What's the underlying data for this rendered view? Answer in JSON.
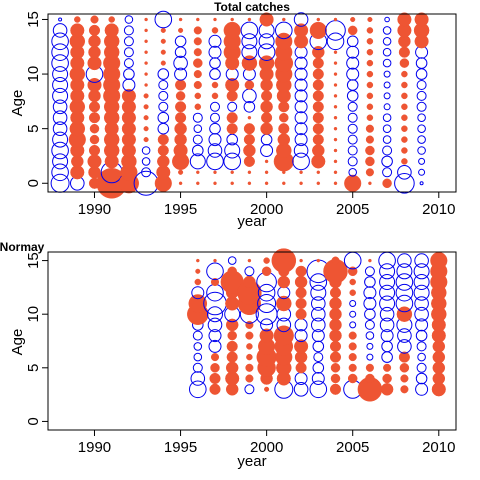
{
  "chart_data": [
    {
      "type": "bubble",
      "title": "Total catches",
      "xlabel": "year",
      "ylabel": "Age",
      "xlim": [
        1987.3,
        2011.0
      ],
      "ylim": [
        -0.8,
        15.5
      ],
      "xticks": [
        "1990",
        "1995",
        "2000",
        "2005",
        "2010"
      ],
      "yticks": [
        "0",
        "5",
        "10",
        "15"
      ],
      "legend": "none",
      "grid": false,
      "positive_color": "#ee5533",
      "negative_color": "#0000ee",
      "note": "filled red = positive residual, open blue = negative residual; value = signed relative size",
      "x": [
        1988,
        1989,
        1990,
        1991,
        1992,
        1993,
        1994,
        1995,
        1996,
        1997,
        1998,
        1999,
        2000,
        2001,
        2002,
        2003,
        2004,
        2005,
        2006,
        2007,
        2008,
        2009
      ],
      "ages": [
        0,
        1,
        2,
        3,
        4,
        5,
        6,
        7,
        8,
        9,
        10,
        11,
        12,
        13,
        14,
        15
      ],
      "series": [
        {
          "x": 1988,
          "values": [
            -0.6,
            -0.55,
            -0.5,
            -0.55,
            -0.5,
            -0.45,
            -0.45,
            -0.45,
            -0.5,
            -0.5,
            -0.5,
            -0.55,
            -0.55,
            -0.55,
            -0.45,
            -0.1
          ]
        },
        {
          "x": 1989,
          "values": [
            -0.45,
            0.45,
            0.4,
            0.45,
            0.55,
            0.5,
            0.45,
            0.5,
            0.45,
            0.45,
            0.5,
            0.45,
            0.45,
            0.5,
            0.45,
            0.2
          ]
        },
        {
          "x": 1990,
          "values": [
            0.35,
            0.4,
            0.45,
            0.35,
            0.3,
            0.3,
            0.35,
            0.35,
            0.4,
            0.45,
            -0.55,
            0.45,
            0.4,
            0.4,
            0.35,
            0.25
          ]
        },
        {
          "x": 1991,
          "values": [
            1.0,
            -0.7,
            0.45,
            0.5,
            0.5,
            0.45,
            0.5,
            0.5,
            0.55,
            0.55,
            0.55,
            0.55,
            0.5,
            0.5,
            0.45,
            0.2
          ]
        },
        {
          "x": 1992,
          "values": [
            0.65,
            0.55,
            0.5,
            0.45,
            0.45,
            0.45,
            0.45,
            0.45,
            0.45,
            -0.4,
            -0.35,
            -0.3,
            -0.3,
            -0.3,
            -0.3,
            -0.25
          ]
        },
        {
          "x": 1993,
          "values": [
            -0.8,
            -0.3,
            -0.25,
            -0.25,
            0.15,
            0.15,
            0.15,
            0.15,
            0.15,
            0.1,
            0.1,
            0.1,
            0.1,
            0.1,
            0.1,
            0.1
          ]
        },
        {
          "x": 1994,
          "values": [
            0.55,
            0.45,
            0.4,
            0.35,
            0.35,
            -0.35,
            -0.35,
            -0.3,
            -0.3,
            -0.3,
            -0.35,
            0.15,
            0.15,
            0.15,
            0.15,
            -0.55
          ]
        },
        {
          "x": 1995,
          "values": [
            0.1,
            0.15,
            0.55,
            0.45,
            0.4,
            0.4,
            0.35,
            0.35,
            0.3,
            0.35,
            -0.4,
            -0.45,
            -0.35,
            -0.35,
            0.15,
            0.1
          ]
        },
        {
          "x": 1996,
          "values": [
            0.1,
            0.1,
            -0.5,
            -0.35,
            -0.3,
            -0.25,
            -0.3,
            0.2,
            0.2,
            0.25,
            0.25,
            0.3,
            0.25,
            0.25,
            0.25,
            0.1
          ]
        },
        {
          "x": 1997,
          "values": [
            0.1,
            0.1,
            -0.55,
            -0.45,
            -0.4,
            -0.35,
            -0.3,
            -0.3,
            0.2,
            0.2,
            -0.35,
            -0.35,
            -0.4,
            -0.4,
            0.2,
            0.1
          ]
        },
        {
          "x": 1998,
          "values": [
            0.1,
            0.1,
            -0.55,
            -0.5,
            -0.35,
            0.35,
            0.35,
            -0.3,
            0.35,
            0.45,
            -0.4,
            0.45,
            0.55,
            0.55,
            0.55,
            0.1
          ]
        },
        {
          "x": 1999,
          "values": [
            0.1,
            0.1,
            0.35,
            0.4,
            0.35,
            0.35,
            0.1,
            -0.35,
            -0.45,
            0.3,
            -0.4,
            0.5,
            -0.5,
            -0.5,
            -0.55,
            0.1
          ]
        },
        {
          "x": 2000,
          "values": [
            0.1,
            0.1,
            0.1,
            -0.4,
            -0.35,
            0.4,
            0.35,
            0.4,
            0.35,
            0.4,
            0.45,
            0.5,
            -0.55,
            -0.5,
            -0.5,
            0.45
          ]
        },
        {
          "x": 2001,
          "values": [
            0.1,
            0.1,
            0.65,
            0.5,
            0.4,
            0.35,
            0.3,
            0.35,
            0.45,
            0.5,
            0.55,
            0.6,
            0.55,
            0.55,
            -0.55,
            0.1
          ]
        },
        {
          "x": 2002,
          "values": [
            0.1,
            0.1,
            -0.55,
            -0.45,
            -0.4,
            -0.4,
            -0.4,
            -0.4,
            -0.4,
            -0.4,
            -0.4,
            -0.4,
            -0.4,
            0.45,
            0.45,
            -0.45
          ]
        },
        {
          "x": 2003,
          "values": [
            0.1,
            0.1,
            0.45,
            0.4,
            0.35,
            0.35,
            0.35,
            0.35,
            0.35,
            0.35,
            0.35,
            0.35,
            0.4,
            -0.55,
            0.55,
            0.1
          ]
        },
        {
          "x": 2004,
          "values": [
            0.1,
            0.1,
            0.1,
            0.1,
            0.1,
            0.1,
            0.1,
            0.1,
            0.1,
            0.1,
            0.1,
            0.1,
            0.1,
            -0.55,
            -0.65,
            0.1
          ]
        },
        {
          "x": 2005,
          "values": [
            0.55,
            -0.25,
            -0.3,
            -0.3,
            -0.3,
            -0.3,
            -0.3,
            -0.3,
            -0.35,
            -0.35,
            -0.4,
            -0.4,
            -0.4,
            -0.35,
            0.3,
            0.15
          ]
        },
        {
          "x": 2006,
          "values": [
            0.1,
            0.25,
            0.3,
            0.3,
            0.25,
            0.25,
            0.2,
            0.2,
            0.2,
            0.2,
            0.2,
            0.2,
            0.2,
            0.2,
            0.2,
            0.15
          ]
        },
        {
          "x": 2007,
          "values": [
            0.3,
            -0.3,
            -0.35,
            -0.3,
            -0.25,
            -0.25,
            -0.25,
            -0.2,
            -0.2,
            -0.2,
            -0.2,
            -0.25,
            -0.25,
            -0.25,
            -0.25,
            -0.15
          ]
        },
        {
          "x": 2008,
          "values": [
            -0.65,
            -0.45,
            0.2,
            0.2,
            0.2,
            0.2,
            0.2,
            0.2,
            0.2,
            0.2,
            0.2,
            0.3,
            0.35,
            0.4,
            0.45,
            0.45
          ]
        },
        {
          "x": 2009,
          "values": [
            -0.1,
            -0.2,
            -0.2,
            -0.25,
            -0.25,
            -0.25,
            -0.25,
            -0.3,
            -0.3,
            -0.3,
            -0.35,
            -0.35,
            -0.4,
            0.45,
            0.5,
            0.45
          ]
        }
      ]
    },
    {
      "type": "bubble",
      "title": "Normay",
      "xlabel": "year",
      "ylabel": "Age",
      "xlim": [
        1987.3,
        2011.0
      ],
      "ylim": [
        -0.8,
        15.8
      ],
      "xticks": [
        "1990",
        "1995",
        "2000",
        "2005",
        "2010"
      ],
      "yticks": [
        "0",
        "5",
        "10",
        "15"
      ],
      "legend": "none",
      "grid": false,
      "positive_color": "#ee5533",
      "negative_color": "#0000ee",
      "note": "filled red = positive residual, open blue = negative residual; value = signed relative size",
      "x": [
        1996,
        1997,
        1998,
        1999,
        2000,
        2001,
        2002,
        2003,
        2004,
        2005,
        2006,
        2007,
        2008,
        2009,
        2010
      ],
      "ages": [
        3,
        4,
        5,
        6,
        7,
        8,
        9,
        10,
        11,
        12,
        13,
        14,
        15
      ],
      "series": [
        {
          "x": 1996,
          "values": [
            -0.55,
            -0.45,
            -0.3,
            -0.25,
            -0.25,
            -0.3,
            -0.35,
            0.7,
            0.6,
            -0.4,
            0.2,
            0.15,
            0.1
          ]
        },
        {
          "x": 1997,
          "values": [
            0.35,
            0.35,
            0.3,
            0.25,
            -0.4,
            -0.4,
            -0.45,
            -0.5,
            -0.75,
            -0.55,
            0.25,
            -0.55,
            0.1
          ]
        },
        {
          "x": 1998,
          "values": [
            0.4,
            0.45,
            0.4,
            0.35,
            0.35,
            0.3,
            0.4,
            -0.5,
            0.45,
            0.4,
            0.75,
            0.3,
            -0.25
          ]
        },
        {
          "x": 1999,
          "values": [
            -0.3,
            0.25,
            0.25,
            0.2,
            0.2,
            0.25,
            0.25,
            -0.6,
            0.75,
            0.8,
            0.4,
            -0.3,
            0.1
          ]
        },
        {
          "x": 2000,
          "values": [
            0.15,
            0.4,
            0.6,
            0.65,
            0.55,
            0.45,
            -0.4,
            -0.7,
            -0.6,
            -0.55,
            -0.65,
            0.3,
            0.2
          ]
        },
        {
          "x": 2001,
          "values": [
            -0.6,
            0.45,
            0.5,
            0.55,
            0.6,
            0.65,
            -0.45,
            -0.45,
            0.5,
            -0.4,
            0.4,
            0.35,
            0.8
          ]
        },
        {
          "x": 2002,
          "values": [
            -0.45,
            -0.4,
            0.35,
            0.4,
            0.45,
            -0.4,
            -0.4,
            0.35,
            0.35,
            0.35,
            0.4,
            0.35,
            0.1
          ]
        },
        {
          "x": 2003,
          "values": [
            -0.55,
            -0.4,
            -0.35,
            -0.3,
            -0.35,
            -0.4,
            -0.45,
            -0.45,
            -0.45,
            -0.5,
            -0.55,
            -0.75,
            0.1
          ]
        },
        {
          "x": 2004,
          "values": [
            0.35,
            0.3,
            0.3,
            0.35,
            0.35,
            0.4,
            0.4,
            0.4,
            0.4,
            0.35,
            0.4,
            0.8,
            0.25
          ]
        },
        {
          "x": 2005,
          "values": [
            -0.6,
            0.3,
            0.25,
            0.25,
            0.25,
            0.25,
            -0.2,
            -0.2,
            -0.2,
            0.2,
            0.2,
            0.3,
            -0.55
          ]
        },
        {
          "x": 2006,
          "values": [
            0.8,
            0.3,
            0.25,
            -0.2,
            -0.2,
            -0.25,
            -0.3,
            -0.35,
            -0.4,
            -0.4,
            -0.35,
            -0.3,
            0.1
          ]
        },
        {
          "x": 2007,
          "values": [
            0.4,
            0.3,
            0.25,
            -0.35,
            -0.35,
            -0.4,
            -0.45,
            -0.45,
            -0.5,
            -0.5,
            -0.5,
            -0.5,
            -0.55
          ]
        },
        {
          "x": 2008,
          "values": [
            0.25,
            0.25,
            0.3,
            0.35,
            -0.45,
            -0.45,
            -0.5,
            0.5,
            -0.55,
            -0.55,
            -0.55,
            -0.5,
            -0.45
          ]
        },
        {
          "x": 2009,
          "values": [
            -0.4,
            -0.35,
            -0.3,
            -0.25,
            -0.3,
            -0.35,
            -0.4,
            -0.45,
            -0.45,
            -0.5,
            -0.5,
            -0.5,
            -0.45
          ]
        },
        {
          "x": 2010,
          "values": [
            0.45,
            0.4,
            0.4,
            0.4,
            0.4,
            0.45,
            0.45,
            0.5,
            0.5,
            0.5,
            0.55,
            0.55,
            0.55
          ]
        }
      ]
    }
  ]
}
